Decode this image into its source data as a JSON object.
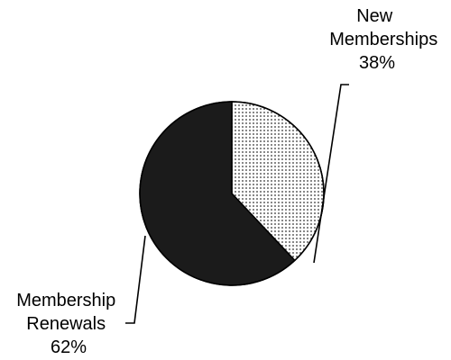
{
  "chart_data": {
    "type": "pie",
    "title": "",
    "slices": [
      {
        "label_lines": [
          "New",
          "Memberships"
        ],
        "value": 38,
        "value_label": "38%",
        "fill": "dotted",
        "color": "#ffffff",
        "dot_color": "#333333"
      },
      {
        "label_lines": [
          "Membership",
          "Renewals"
        ],
        "value": 62,
        "value_label": "62%",
        "fill": "solid",
        "color": "#1b1b1b"
      }
    ],
    "start_angle": "12 o'clock",
    "direction": "clockwise",
    "legend": "none"
  }
}
